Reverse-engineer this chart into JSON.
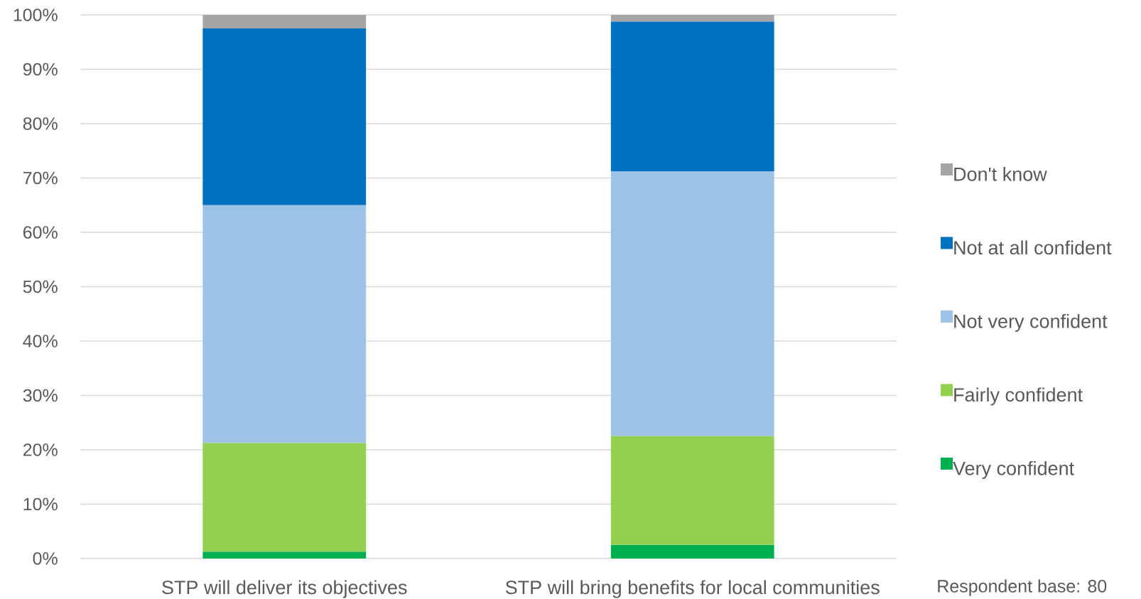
{
  "chart_data": {
    "type": "bar",
    "stacked": true,
    "categories": [
      "STP will deliver its objectives",
      "STP will bring benefits for local communities"
    ],
    "series": [
      {
        "name": "Very confident",
        "color": "#00b050",
        "values": [
          1.25,
          2.5
        ]
      },
      {
        "name": "Fairly confident",
        "color": "#92d050",
        "values": [
          20,
          20
        ]
      },
      {
        "name": "Not very confident",
        "color": "#9dc3e6",
        "values": [
          43.75,
          48.75
        ]
      },
      {
        "name": "Not at all confident",
        "color": "#0070c0",
        "values": [
          32.5,
          27.5
        ]
      },
      {
        "name": "Don't know",
        "color": "#a5a5a5",
        "values": [
          2.5,
          1.25
        ]
      }
    ],
    "ylim": [
      0,
      100
    ],
    "yticks": [
      {
        "value": 0,
        "label": "0%"
      },
      {
        "value": 10,
        "label": "10%"
      },
      {
        "value": 20,
        "label": "20%"
      },
      {
        "value": 30,
        "label": "30%"
      },
      {
        "value": 40,
        "label": "40%"
      },
      {
        "value": 50,
        "label": "50%"
      },
      {
        "value": 60,
        "label": "60%"
      },
      {
        "value": 70,
        "label": "70%"
      },
      {
        "value": 80,
        "label": "80%"
      },
      {
        "value": 90,
        "label": "90%"
      },
      {
        "value": 100,
        "label": "100%"
      }
    ],
    "grid": "y",
    "legend": "right",
    "annotations": [
      "Respondent base: 80"
    ]
  }
}
